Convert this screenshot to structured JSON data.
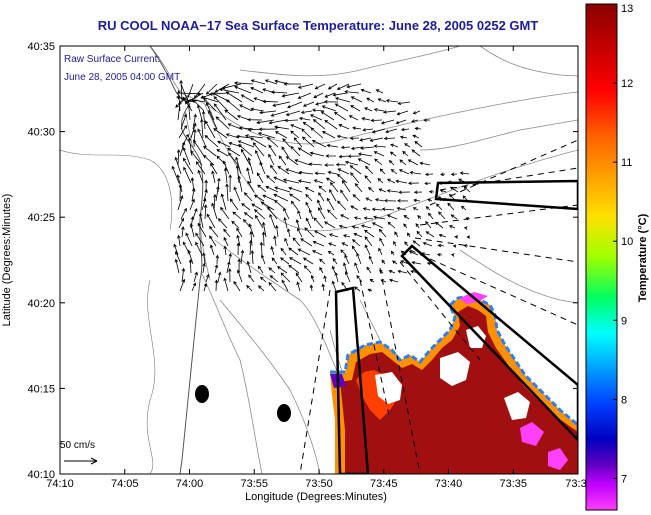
{
  "chart_data": {
    "type": "heatmap",
    "title": "RU COOL  NOAA−17  Sea Surface Temperature:  June 28, 2005 0252 GMT",
    "annotation_line1": "Raw Surface Current:",
    "annotation_line2": "June 28, 2005 04:00 GMT",
    "xlabel": "Longitude (Degrees:Minutes)",
    "ylabel": "Latitude (Degrees:Minutes)",
    "x_ticks": [
      "74:10",
      "74:05",
      "74:00",
      "73:55",
      "73:50",
      "73:45",
      "73:40",
      "73:35",
      "73:3"
    ],
    "y_ticks": [
      "40:35",
      "40:30",
      "40:25",
      "40:20",
      "40:15",
      "40:10"
    ],
    "colorbar": {
      "label": "Temperature (°C)",
      "ticks": [
        "13",
        "12",
        "11",
        "10",
        "9",
        "8",
        "7"
      ],
      "range": [
        6.6,
        13
      ],
      "colors": [
        "#8b0000",
        "#c00000",
        "#ff0000",
        "#ff6000",
        "#ffa000",
        "#ffe000",
        "#a0ff00",
        "#00ff60",
        "#00ffff",
        "#00a0ff",
        "#0040ff",
        "#0000c0",
        "#6000c0",
        "#c000ff",
        "#ff40ff"
      ]
    },
    "scale_label": "50 cm/s",
    "grid": false,
    "colors": {
      "title": "#1c1c9c",
      "warm_water": "#a01010",
      "land": "#ffffff",
      "contour": "#888888"
    }
  }
}
